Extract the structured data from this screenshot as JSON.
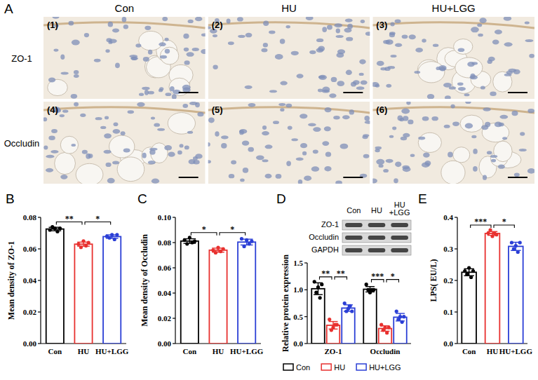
{
  "micrographs": {
    "panel": "A",
    "columns": [
      "Con",
      "HU",
      "HU+LGG"
    ],
    "rows": [
      "ZO-1",
      "Occludin"
    ],
    "labels": [
      "(1)",
      "(2)",
      "(3)",
      "(4)",
      "(5)",
      "(6)"
    ]
  },
  "chart_data": [
    {
      "panel": "B",
      "type": "bar",
      "categories": [
        "Con",
        "HU",
        "HU+LGG"
      ],
      "values": [
        0.0726,
        0.063,
        0.0678
      ],
      "errors": [
        0.0011,
        0.0013,
        0.0011
      ],
      "points": [
        [
          0.072,
          0.074,
          0.073,
          0.071,
          0.073
        ],
        [
          0.063,
          0.061,
          0.065,
          0.062,
          0.064
        ],
        [
          0.068,
          0.067,
          0.069,
          0.066,
          0.069
        ]
      ],
      "colors": [
        "#000000",
        "#e8312f",
        "#2b3fd6"
      ],
      "y_label": "Mean density of ZO-1",
      "ylim": [
        0,
        0.08
      ],
      "yticks": [
        {
          "value": 0,
          "label": "0.00"
        },
        {
          "value": 0.02,
          "label": "0.02"
        },
        {
          "value": 0.04,
          "label": "0.04"
        },
        {
          "value": 0.06,
          "label": "0.06"
        },
        {
          "value": 0.08,
          "label": "0.08"
        }
      ],
      "significance": [
        {
          "from": 0,
          "to": 1,
          "label": "**"
        },
        {
          "from": 1,
          "to": 2,
          "label": "*"
        }
      ]
    },
    {
      "panel": "C",
      "type": "bar",
      "categories": [
        "Con",
        "HU",
        "HU+LGG"
      ],
      "values": [
        0.0812,
        0.074,
        0.0804
      ],
      "errors": [
        0.0018,
        0.0016,
        0.0023
      ],
      "points": [
        [
          0.082,
          0.079,
          0.084,
          0.08,
          0.081
        ],
        [
          0.074,
          0.072,
          0.076,
          0.073,
          0.075
        ],
        [
          0.083,
          0.077,
          0.082,
          0.079,
          0.081
        ]
      ],
      "colors": [
        "#000000",
        "#e8312f",
        "#2b3fd6"
      ],
      "y_label": "Mean density of Occludin",
      "ylim": [
        0,
        0.1
      ],
      "yticks": [
        {
          "value": 0,
          "label": "0.00"
        },
        {
          "value": 0.02,
          "label": "0.02"
        },
        {
          "value": 0.04,
          "label": "0.04"
        },
        {
          "value": 0.06,
          "label": "0.06"
        },
        {
          "value": 0.08,
          "label": "0.08"
        },
        {
          "value": 0.1,
          "label": "0.10"
        }
      ],
      "significance": [
        {
          "from": 0,
          "to": 1,
          "label": "*"
        },
        {
          "from": 1,
          "to": 2,
          "label": "*"
        }
      ]
    },
    {
      "panel": "D",
      "type": "bar",
      "blot": {
        "lanes": [
          "Con",
          "HU",
          "HU+LGG"
        ],
        "bands": [
          "ZO-1",
          "Occludin",
          "GAPDH"
        ]
      },
      "categories": [
        "ZO-1",
        "Occludin"
      ],
      "series": [
        {
          "name": "Con",
          "color": "#000000",
          "values": [
            1.02,
            1.01
          ],
          "errors": [
            0.11,
            0.05
          ],
          "points": [
            [
              1.15,
              0.95,
              1.05,
              0.85,
              1.1
            ],
            [
              1.1,
              1.0,
              0.95,
              1.0,
              1.0
            ]
          ]
        },
        {
          "name": "HU",
          "color": "#e8312f",
          "values": [
            0.34,
            0.28
          ],
          "errors": [
            0.07,
            0.05
          ],
          "points": [
            [
              0.45,
              0.25,
              0.3,
              0.35,
              0.35
            ],
            [
              0.35,
              0.25,
              0.3,
              0.2,
              0.3
            ]
          ]
        },
        {
          "name": "HU+LGG",
          "color": "#2b3fd6",
          "values": [
            0.66,
            0.49
          ],
          "errors": [
            0.06,
            0.07
          ],
          "points": [
            [
              0.75,
              0.6,
              0.65,
              0.7,
              0.6
            ],
            [
              0.6,
              0.45,
              0.5,
              0.4,
              0.5
            ]
          ]
        }
      ],
      "y_label": "Relative protein expression",
      "ylim": [
        0,
        1.5
      ],
      "yticks": [
        {
          "value": 0,
          "label": "0.0"
        },
        {
          "value": 0.5,
          "label": "0.5"
        },
        {
          "value": 1,
          "label": "1.0"
        },
        {
          "value": 1.5,
          "label": "1.5"
        }
      ],
      "legend": "bottom",
      "significance": [
        {
          "group": 0,
          "from": 0,
          "to": 1,
          "label": "**"
        },
        {
          "group": 0,
          "from": 1,
          "to": 2,
          "label": "**"
        },
        {
          "group": 1,
          "from": 0,
          "to": 1,
          "label": "***"
        },
        {
          "group": 1,
          "from": 1,
          "to": 2,
          "label": "*"
        }
      ]
    },
    {
      "panel": "E",
      "type": "bar",
      "categories": [
        "Con",
        "HU",
        "HU+LGG"
      ],
      "values": [
        0.226,
        0.349,
        0.308
      ],
      "errors": [
        0.011,
        0.006,
        0.013
      ],
      "points": [
        [
          0.23,
          0.22,
          0.24,
          0.21,
          0.23
        ],
        [
          0.35,
          0.36,
          0.34,
          0.35,
          0.345
        ],
        [
          0.32,
          0.3,
          0.31,
          0.29,
          0.32
        ]
      ],
      "colors": [
        "#000000",
        "#e8312f",
        "#2b3fd6"
      ],
      "y_label": "LPS( EU/L)",
      "ylim": [
        0,
        0.4
      ],
      "yticks": [
        {
          "value": 0,
          "label": "0.0"
        },
        {
          "value": 0.1,
          "label": "0.1"
        },
        {
          "value": 0.2,
          "label": "0.2"
        },
        {
          "value": 0.3,
          "label": "0.3"
        },
        {
          "value": 0.4,
          "label": "0.4"
        }
      ],
      "significance": [
        {
          "from": 0,
          "to": 1,
          "label": "***"
        },
        {
          "from": 1,
          "to": 2,
          "label": "*"
        }
      ]
    }
  ]
}
